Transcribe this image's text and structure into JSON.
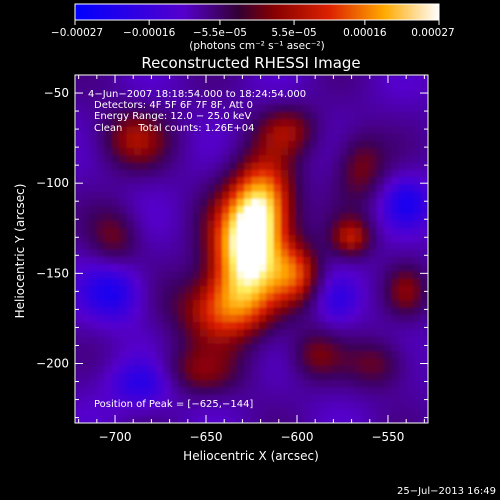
{
  "chart_data": {
    "type": "heatmap",
    "title": "Reconstructed RHESSI Image",
    "xlabel": "Heliocentric X (arcsec)",
    "ylabel": "Heliocentric Y (arcsec)",
    "xlim": [
      -722,
      -528
    ],
    "ylim": [
      -233,
      -40
    ],
    "x_ticks": [
      -700,
      -650,
      -600,
      -550
    ],
    "x_tick_labels": [
      "−700",
      "−650",
      "−600",
      "−550"
    ],
    "y_ticks": [
      -50,
      -100,
      -150,
      -200
    ],
    "y_tick_labels": [
      "−50",
      "−100",
      "−150",
      "−200"
    ],
    "colorbar": {
      "min": -0.00027,
      "max": 0.00027,
      "ticks": [
        -0.00027,
        -0.00016,
        -5.5e-05,
        5.5e-05,
        0.00016,
        0.00027
      ],
      "tick_labels": [
        "−0.00027",
        "−0.00016",
        "−5.5e−05",
        "5.5e−05",
        "0.00016",
        "0.00027"
      ],
      "colormap": [
        "#0000ff",
        "#6600cc",
        "#cc0000",
        "#ff6600",
        "#ffff66",
        "#ffffff"
      ],
      "units_label": "(photons cm⁻² s⁻¹ asec⁻²)"
    },
    "annotations": [
      "4−Jun−2007 18:18:54.000 to 18:24:54.000",
      "Detectors: 4F 5F 6F 7F 8F, Att 0",
      "Energy Range: 12.0 − 25.0 keV",
      "Clean     Total counts: 1.26E+04"
    ],
    "peak_label": "Position of Peak = [−625,−144]",
    "peak": {
      "x": -625,
      "y": -144
    },
    "blobs": [
      {
        "x": -628,
        "y": -138,
        "value": 1.0,
        "sx": 14,
        "sy": 22
      },
      {
        "x": -618,
        "y": -110,
        "value": 0.7,
        "sx": 12,
        "sy": 18
      },
      {
        "x": -642,
        "y": -170,
        "value": 0.55,
        "sx": 18,
        "sy": 14
      },
      {
        "x": -600,
        "y": -150,
        "value": 0.5,
        "sx": 10,
        "sy": 12
      },
      {
        "x": -570,
        "y": -130,
        "value": 0.45,
        "sx": 8,
        "sy": 8
      },
      {
        "x": -690,
        "y": -75,
        "value": 0.4,
        "sx": 14,
        "sy": 12
      },
      {
        "x": -605,
        "y": -70,
        "value": 0.35,
        "sx": 12,
        "sy": 10
      },
      {
        "x": -565,
        "y": -90,
        "value": 0.35,
        "sx": 10,
        "sy": 14
      },
      {
        "x": -700,
        "y": -130,
        "value": 0.3,
        "sx": 10,
        "sy": 12
      },
      {
        "x": -660,
        "y": -205,
        "value": 0.35,
        "sx": 20,
        "sy": 10
      },
      {
        "x": -555,
        "y": -200,
        "value": 0.3,
        "sx": 12,
        "sy": 10
      },
      {
        "x": -540,
        "y": -160,
        "value": 0.3,
        "sx": 8,
        "sy": 10
      },
      {
        "x": -590,
        "y": -195,
        "value": 0.3,
        "sx": 10,
        "sy": 10
      },
      {
        "x": -683,
        "y": -210,
        "value": -0.4,
        "sx": 14,
        "sy": 10
      },
      {
        "x": -700,
        "y": -160,
        "value": -0.35,
        "sx": 12,
        "sy": 12
      },
      {
        "x": -540,
        "y": -110,
        "value": -0.3,
        "sx": 10,
        "sy": 10
      },
      {
        "x": -578,
        "y": -165,
        "value": -0.2,
        "sx": 8,
        "sy": 10
      }
    ]
  },
  "footer": {
    "timestamp": "25−Jul−2013 16:49"
  }
}
